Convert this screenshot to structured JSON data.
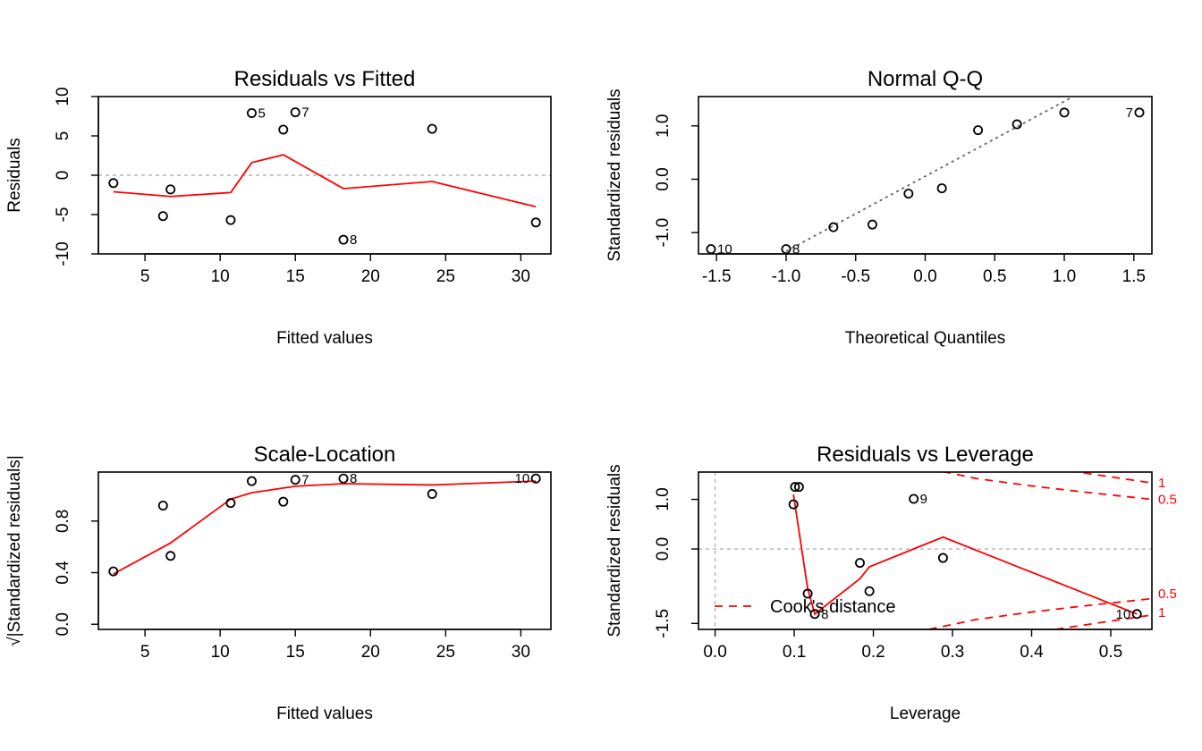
{
  "chart_data": [
    {
      "type": "scatter",
      "title": "Residuals vs Fitted",
      "xlabel": "Fitted values",
      "ylabel": "Residuals",
      "xlim": [
        1.9,
        32.0
      ],
      "ylim": [
        -10,
        10
      ],
      "xticks": [
        5,
        10,
        15,
        20,
        25,
        30
      ],
      "yticks": [
        -10,
        -5,
        0,
        5,
        10
      ],
      "xticklabels": [
        "5",
        "10",
        "15",
        "20",
        "25",
        "30"
      ],
      "yticklabels": [
        "-10",
        "-5",
        "0",
        "5",
        "10"
      ],
      "reference_line_y": 0,
      "points": [
        {
          "x": 2.9,
          "y": -1.0,
          "label": ""
        },
        {
          "x": 6.2,
          "y": -5.2,
          "label": ""
        },
        {
          "x": 6.7,
          "y": -1.8,
          "label": ""
        },
        {
          "x": 10.7,
          "y": -5.7,
          "label": ""
        },
        {
          "x": 12.1,
          "y": 7.9,
          "label": "5"
        },
        {
          "x": 14.2,
          "y": 5.8,
          "label": ""
        },
        {
          "x": 15.0,
          "y": 8.0,
          "label": "7"
        },
        {
          "x": 18.2,
          "y": -8.2,
          "label": "8"
        },
        {
          "x": 24.1,
          "y": 5.9,
          "label": ""
        },
        {
          "x": 31.0,
          "y": -6.0,
          "label": ""
        }
      ],
      "smooth": {
        "x": [
          2.9,
          6.7,
          10.7,
          12.1,
          14.2,
          18.2,
          24.1,
          31.0
        ],
        "y": [
          -2.1,
          -2.7,
          -2.2,
          1.6,
          2.6,
          -1.7,
          -0.8,
          -4.0
        ]
      }
    },
    {
      "type": "scatter",
      "title": "Normal Q-Q",
      "xlabel": "Theoretical Quantiles",
      "ylabel": "Standardized residuals",
      "xlim": [
        -1.63,
        1.63
      ],
      "ylim": [
        -1.4,
        1.55
      ],
      "xticks": [
        -1.5,
        -1.0,
        -0.5,
        0.0,
        0.5,
        1.0,
        1.5
      ],
      "yticks": [
        -1.0,
        0.0,
        1.0
      ],
      "xticklabels": [
        "-1.5",
        "-1.0",
        "-0.5",
        "0.0",
        "0.5",
        "1.0",
        "1.5"
      ],
      "yticklabels": [
        "-1.0",
        "0.0",
        "1.0"
      ],
      "qq_line": {
        "x": [
          -1.0,
          1.1
        ],
        "y": [
          -1.35,
          1.6
        ]
      },
      "points": [
        {
          "x": -1.54,
          "y": -1.31,
          "label": "10"
        },
        {
          "x": -1.0,
          "y": -1.31,
          "label": "8"
        },
        {
          "x": -0.66,
          "y": -0.9,
          "label": ""
        },
        {
          "x": -0.38,
          "y": -0.85,
          "label": ""
        },
        {
          "x": -0.12,
          "y": -0.27,
          "label": ""
        },
        {
          "x": 0.12,
          "y": -0.17,
          "label": ""
        },
        {
          "x": 0.38,
          "y": 0.92,
          "label": ""
        },
        {
          "x": 0.66,
          "y": 1.03,
          "label": ""
        },
        {
          "x": 1.0,
          "y": 1.25,
          "label": ""
        },
        {
          "x": 1.54,
          "y": 1.25,
          "label": "7"
        }
      ]
    },
    {
      "type": "scatter",
      "title": "Scale-Location",
      "xlabel": "Fitted values",
      "ylabel": "√|Standardized residuals|",
      "xlim": [
        1.9,
        32.0
      ],
      "ylim": [
        -0.04,
        1.18
      ],
      "xticks": [
        5,
        10,
        15,
        20,
        25,
        30
      ],
      "yticks": [
        0.0,
        0.4,
        0.8
      ],
      "xticklabels": [
        "5",
        "10",
        "15",
        "20",
        "25",
        "30"
      ],
      "yticklabels": [
        "0.0",
        "0.4",
        "0.8"
      ],
      "points": [
        {
          "x": 2.9,
          "y": 0.41,
          "label": ""
        },
        {
          "x": 6.2,
          "y": 0.92,
          "label": ""
        },
        {
          "x": 6.7,
          "y": 0.53,
          "label": ""
        },
        {
          "x": 10.7,
          "y": 0.94,
          "label": ""
        },
        {
          "x": 12.1,
          "y": 1.11,
          "label": ""
        },
        {
          "x": 14.2,
          "y": 0.95,
          "label": ""
        },
        {
          "x": 15.0,
          "y": 1.12,
          "label": "7"
        },
        {
          "x": 18.2,
          "y": 1.13,
          "label": "8"
        },
        {
          "x": 24.1,
          "y": 1.01,
          "label": ""
        },
        {
          "x": 31.0,
          "y": 1.13,
          "label": "10"
        }
      ],
      "smooth": {
        "x": [
          2.9,
          6.7,
          10.7,
          12.1,
          15.0,
          18.2,
          24.1,
          31.0
        ],
        "y": [
          0.39,
          0.63,
          0.97,
          1.02,
          1.07,
          1.09,
          1.08,
          1.11
        ]
      }
    },
    {
      "type": "scatter",
      "title": "Residuals vs Leverage",
      "xlabel": "Leverage",
      "ylabel": "Standardized residuals",
      "xlim": [
        -0.021,
        0.552
      ],
      "ylim": [
        -1.62,
        1.55
      ],
      "xticks": [
        0.0,
        0.1,
        0.2,
        0.3,
        0.4,
        0.5
      ],
      "yticks": [
        -1.5,
        0.0,
        1.0
      ],
      "xticklabels": [
        "0.0",
        "0.1",
        "0.2",
        "0.3",
        "0.4",
        "0.5"
      ],
      "yticklabels": [
        "-1.5",
        "0.0",
        "1.0"
      ],
      "reference_line_y": 0,
      "reference_line_x": 0,
      "points": [
        {
          "x": 0.101,
          "y": 1.25,
          "label": ""
        },
        {
          "x": 0.106,
          "y": 1.25,
          "label": ""
        },
        {
          "x": 0.099,
          "y": 0.9,
          "label": ""
        },
        {
          "x": 0.117,
          "y": -0.9,
          "label": ""
        },
        {
          "x": 0.126,
          "y": -1.31,
          "label": "8"
        },
        {
          "x": 0.183,
          "y": -0.28,
          "label": ""
        },
        {
          "x": 0.195,
          "y": -0.85,
          "label": ""
        },
        {
          "x": 0.251,
          "y": 1.01,
          "label": "9"
        },
        {
          "x": 0.288,
          "y": -0.18,
          "label": ""
        },
        {
          "x": 0.533,
          "y": -1.31,
          "label": "10"
        }
      ],
      "smooth": {
        "x": [
          0.099,
          0.117,
          0.126,
          0.183,
          0.195,
          0.288,
          0.533
        ],
        "y": [
          1.1,
          -0.8,
          -1.31,
          -0.6,
          -0.36,
          0.24,
          -1.31
        ]
      },
      "cooks_distance": {
        "legend": "Cook's distance",
        "levels": [
          "0.5",
          "1"
        ],
        "curves": [
          {
            "level": "0.5",
            "x": [
              0.27,
              0.33,
              0.4,
              0.47,
              0.552
            ],
            "y": [
              -1.62,
              -1.42,
              -1.27,
              -1.14,
              -1.0
            ]
          },
          {
            "level": "1",
            "x": [
              0.43,
              0.48,
              0.552
            ],
            "y": [
              -1.62,
              -1.5,
              -1.33
            ]
          },
          {
            "level": "0.5",
            "x": [
              0.27,
              0.33,
              0.4,
              0.47,
              0.552
            ],
            "y": [
              1.62,
              1.42,
              1.27,
              1.14,
              1.0
            ]
          },
          {
            "level": "1",
            "x": [
              0.43,
              0.48,
              0.552
            ],
            "y": [
              1.62,
              1.5,
              1.33
            ]
          }
        ],
        "right_labels": [
          {
            "text": "1",
            "y": 1.33
          },
          {
            "text": "0.5",
            "y": 1.0
          },
          {
            "text": "0.5",
            "y": -0.9
          },
          {
            "text": "1",
            "y": -1.28
          }
        ]
      }
    }
  ]
}
